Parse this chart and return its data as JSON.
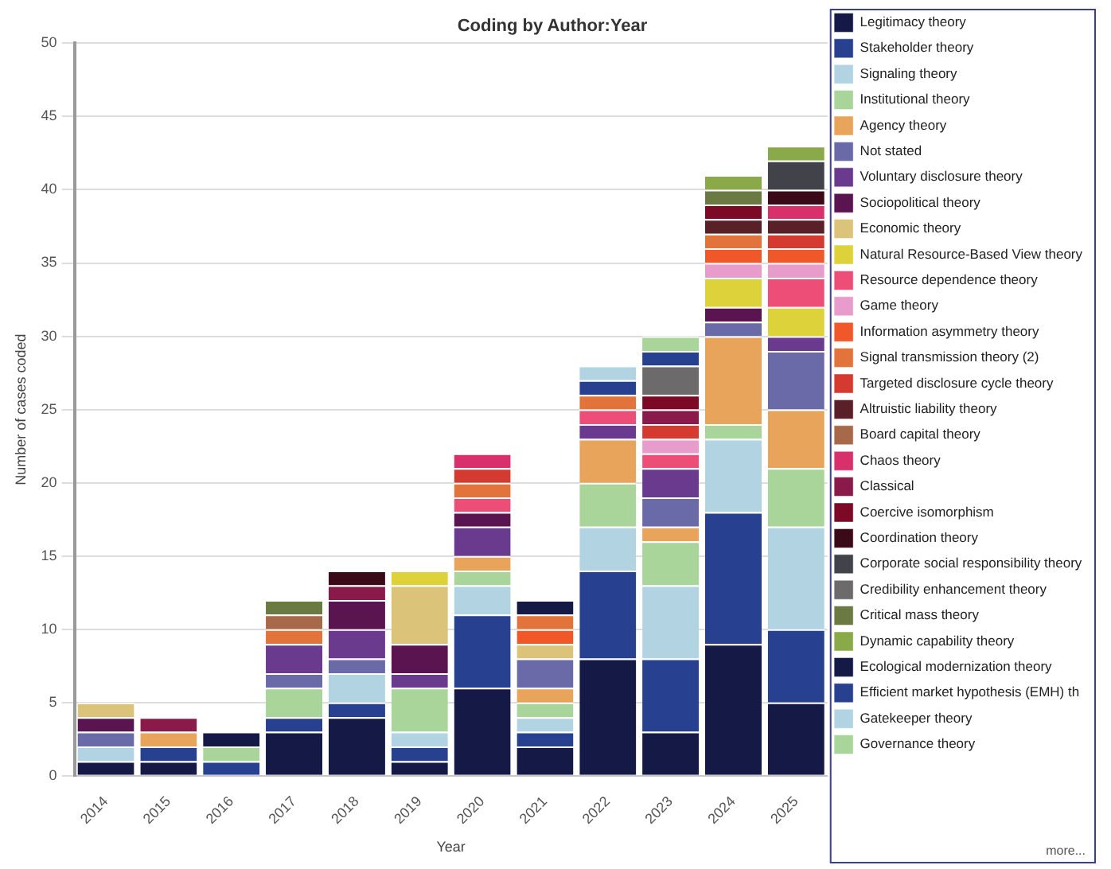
{
  "chart_data": {
    "type": "bar",
    "stacked": true,
    "title": "Coding by Author:Year",
    "xlabel": "Year",
    "ylabel": "Number of cases coded",
    "categories": [
      "2014",
      "2015",
      "2016",
      "2017",
      "2018",
      "2019",
      "2020",
      "2021",
      "2022",
      "2023",
      "2024",
      "2025"
    ],
    "ylim": [
      0,
      50
    ],
    "yticks": [
      0,
      5,
      10,
      15,
      20,
      25,
      30,
      35,
      40,
      45,
      50
    ],
    "grid": "y",
    "legend": "right",
    "annotations": [
      "more..."
    ],
    "series": [
      {
        "name": "Legitimacy theory",
        "color": "#141a45",
        "values": [
          1,
          1,
          null,
          3,
          4,
          1,
          6,
          2,
          8,
          3,
          9,
          5
        ]
      },
      {
        "name": "Stakeholder theory",
        "color": "#27408f",
        "values": [
          null,
          1,
          1,
          1,
          1,
          1,
          5,
          1,
          6,
          5,
          9,
          5
        ]
      },
      {
        "name": "Signaling theory",
        "color": "#b2d4e2",
        "values": [
          1,
          null,
          null,
          null,
          2,
          1,
          2,
          1,
          3,
          5,
          5,
          7
        ]
      },
      {
        "name": "Institutional theory",
        "color": "#a9d49a",
        "values": [
          null,
          null,
          1,
          2,
          null,
          3,
          1,
          1,
          3,
          3,
          1,
          4
        ]
      },
      {
        "name": "Agency theory",
        "color": "#e8a45a",
        "values": [
          null,
          1,
          null,
          null,
          null,
          null,
          1,
          1,
          3,
          1,
          6,
          4
        ]
      },
      {
        "name": "Not stated",
        "color": "#6b6aa8",
        "values": [
          1,
          null,
          null,
          1,
          1,
          null,
          null,
          2,
          null,
          2,
          1,
          4
        ]
      },
      {
        "name": "Voluntary disclosure theory",
        "color": "#6a3a8f",
        "values": [
          null,
          null,
          null,
          2,
          2,
          1,
          2,
          null,
          1,
          2,
          null,
          1
        ]
      },
      {
        "name": "Sociopolitical theory",
        "color": "#5a1450",
        "values": [
          1,
          null,
          null,
          null,
          2,
          2,
          1,
          null,
          null,
          null,
          1,
          null
        ]
      },
      {
        "name": "Economic theory",
        "color": "#dcc37a",
        "values": [
          1,
          null,
          null,
          null,
          null,
          4,
          null,
          1,
          null,
          null,
          null,
          null
        ]
      },
      {
        "name": "Natural Resource-Based View theory",
        "color": "#ddd23a",
        "values": [
          null,
          null,
          null,
          null,
          null,
          1,
          null,
          null,
          null,
          null,
          2,
          2
        ]
      },
      {
        "name": "Resource dependence theory",
        "color": "#ec4e78",
        "values": [
          null,
          null,
          null,
          null,
          null,
          null,
          1,
          null,
          1,
          1,
          null,
          2
        ]
      },
      {
        "name": "Game theory",
        "color": "#e79ccb",
        "values": [
          null,
          null,
          null,
          null,
          null,
          null,
          null,
          null,
          null,
          1,
          1,
          1
        ]
      },
      {
        "name": "Information asymmetry theory",
        "color": "#f0582a",
        "values": [
          null,
          null,
          null,
          null,
          null,
          null,
          null,
          1,
          null,
          null,
          1,
          1
        ]
      },
      {
        "name": "Signal transmission theory (2)",
        "color": "#e2733a",
        "values": [
          null,
          null,
          null,
          1,
          null,
          null,
          1,
          1,
          1,
          null,
          1,
          null
        ]
      },
      {
        "name": "Targeted disclosure cycle theory",
        "color": "#d43a30",
        "values": [
          null,
          null,
          null,
          null,
          null,
          null,
          1,
          null,
          null,
          1,
          null,
          1
        ]
      },
      {
        "name": "Altruistic liability theory",
        "color": "#5a2028",
        "values": [
          null,
          null,
          null,
          null,
          null,
          null,
          null,
          null,
          null,
          null,
          1,
          1
        ]
      },
      {
        "name": "Board capital theory",
        "color": "#a8694a",
        "values": [
          null,
          null,
          null,
          1,
          null,
          null,
          null,
          null,
          null,
          null,
          null,
          null
        ]
      },
      {
        "name": "Chaos theory",
        "color": "#d8306a",
        "values": [
          null,
          null,
          null,
          null,
          null,
          null,
          1,
          null,
          null,
          null,
          null,
          1
        ]
      },
      {
        "name": "Classical",
        "color": "#8a1a4a",
        "values": [
          null,
          1,
          null,
          null,
          1,
          null,
          null,
          null,
          null,
          1,
          null,
          null
        ]
      },
      {
        "name": "Coercive isomorphism",
        "color": "#7c0a26",
        "values": [
          null,
          null,
          null,
          null,
          null,
          null,
          null,
          null,
          null,
          1,
          1,
          null
        ]
      },
      {
        "name": "Coordination theory",
        "color": "#3a0a18",
        "values": [
          null,
          null,
          null,
          null,
          1,
          null,
          null,
          null,
          null,
          null,
          null,
          1
        ]
      },
      {
        "name": "Corporate social responsibility theory",
        "color": "#42424a",
        "values": [
          null,
          null,
          null,
          null,
          null,
          null,
          null,
          null,
          null,
          null,
          null,
          2
        ]
      },
      {
        "name": "Credibility enhancement theory",
        "color": "#6c6a6a",
        "values": [
          null,
          null,
          null,
          null,
          null,
          null,
          null,
          null,
          null,
          2,
          null,
          null
        ]
      },
      {
        "name": "Critical mass theory",
        "color": "#6a7a42",
        "values": [
          null,
          null,
          null,
          1,
          null,
          null,
          null,
          null,
          null,
          null,
          1,
          null
        ]
      },
      {
        "name": "Dynamic capability theory",
        "color": "#8aaa4a",
        "values": [
          null,
          null,
          null,
          null,
          null,
          null,
          null,
          null,
          null,
          null,
          1,
          1
        ]
      },
      {
        "name": "Ecological modernization theory",
        "color": "#141a45",
        "values": [
          null,
          null,
          1,
          null,
          null,
          null,
          null,
          1,
          null,
          null,
          null,
          null
        ]
      },
      {
        "name": "Efficient market hypothesis (EMH) th",
        "color": "#27408f",
        "values": [
          null,
          null,
          null,
          null,
          null,
          null,
          null,
          null,
          1,
          1,
          null,
          null
        ]
      },
      {
        "name": "Gatekeeper theory",
        "color": "#b2d4e2",
        "values": [
          null,
          null,
          null,
          null,
          null,
          null,
          null,
          null,
          1,
          null,
          null,
          null
        ]
      },
      {
        "name": "Governance theory",
        "color": "#a9d49a",
        "values": [
          null,
          null,
          null,
          null,
          null,
          null,
          null,
          null,
          null,
          1,
          null,
          null
        ]
      }
    ]
  }
}
